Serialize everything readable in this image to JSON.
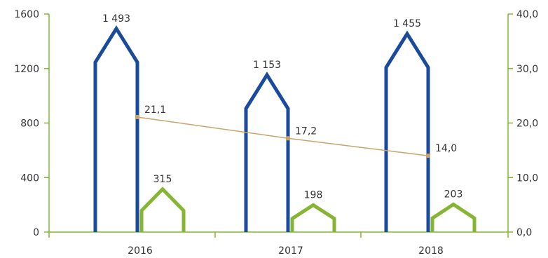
{
  "chart_data": {
    "type": "bar",
    "categories": [
      "2016",
      "2017",
      "2018"
    ],
    "series": [
      {
        "axis": "left",
        "color": "#1a4a9c",
        "shape": "house-outline",
        "values": [
          1493,
          1153,
          1455
        ],
        "labels": [
          "1 493",
          "1 153",
          "1 455"
        ]
      },
      {
        "axis": "left",
        "color": "#86b533",
        "shape": "house-outline",
        "values": [
          315,
          198,
          203
        ],
        "labels": [
          "315",
          "198",
          "203"
        ]
      },
      {
        "axis": "right",
        "type": "line",
        "color": "#c9a46a",
        "values": [
          21.1,
          17.2,
          14.0
        ],
        "labels": [
          "21,1",
          "17,2",
          "14,0"
        ]
      }
    ],
    "y_left": {
      "min": 0,
      "max": 1600,
      "ticks": [
        0,
        400,
        800,
        1200,
        1600
      ],
      "tick_labels": [
        "0",
        "400",
        "800",
        "1200",
        "1600"
      ]
    },
    "y_right": {
      "min": 0,
      "max": 40,
      "ticks": [
        0,
        10,
        20,
        30,
        40
      ],
      "tick_labels": [
        "0,0",
        "10,0",
        "20,0",
        "30,0",
        "40,0"
      ]
    },
    "axis_color": "#86b533",
    "grid": false,
    "title": "",
    "xlabel": "",
    "ylabel": ""
  }
}
